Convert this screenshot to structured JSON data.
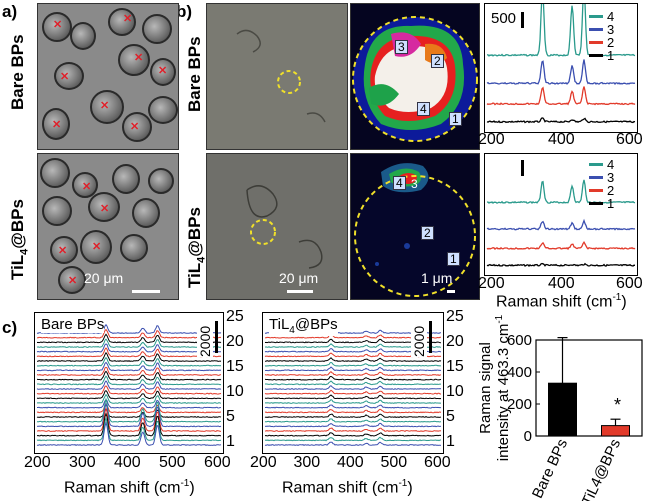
{
  "panels": {
    "a_label": "a)",
    "b_label": "b)",
    "c_label": "c)"
  },
  "rows": {
    "top": "Bare BPs",
    "bottom_prefix": "TiL",
    "bottom_sub": "4",
    "bottom_suffix": "@BPs"
  },
  "scale": {
    "a_bottom": "20 μm",
    "b_bottom": "20 μm",
    "heat_bottom": "1 μm"
  },
  "heat_labels": {
    "top": [
      "3",
      "2",
      "4",
      "1"
    ],
    "bottom": [
      "4",
      "3",
      "2",
      "1"
    ]
  },
  "spectra_small": {
    "scale_label": "500",
    "legend": [
      "4",
      "3",
      "2",
      "1"
    ],
    "legend_colors": [
      "#2a9a8c",
      "#3b4fb0",
      "#e23a2a",
      "#000000"
    ],
    "x_ticks": [
      "200",
      "400",
      "600"
    ],
    "xlabel": "Raman shift (cm",
    "xlabel_sup": "-1",
    "xlabel_end": ")"
  },
  "panel_c": {
    "left_title": "Bare BPs",
    "right_title_prefix": "TiL",
    "right_title_sub": "4",
    "right_title_suffix": "@BPs",
    "scale_label": "2000",
    "index_ticks": [
      "25",
      "20",
      "15",
      "10",
      "5",
      "1"
    ],
    "x_ticks": [
      "200",
      "300",
      "400",
      "500",
      "600"
    ],
    "xlabel": "Raman shift (cm",
    "xlabel_sup": "-1",
    "xlabel_end": ")"
  },
  "chart_data": {
    "type": "bar",
    "categories": [
      "Bare BPs",
      "TiL4@BPs"
    ],
    "values": [
      330,
      65
    ],
    "errors": [
      285,
      40
    ],
    "colors": [
      "#000000",
      "#e23a2a"
    ],
    "ylim": [
      0,
      600
    ],
    "yticks": [
      "0",
      "200",
      "400",
      "600"
    ],
    "ylabel_line1": "Raman signal",
    "ylabel_line2": "intensity at 463.3 cm",
    "ylabel_sup": "-1",
    "annotation": "*"
  }
}
